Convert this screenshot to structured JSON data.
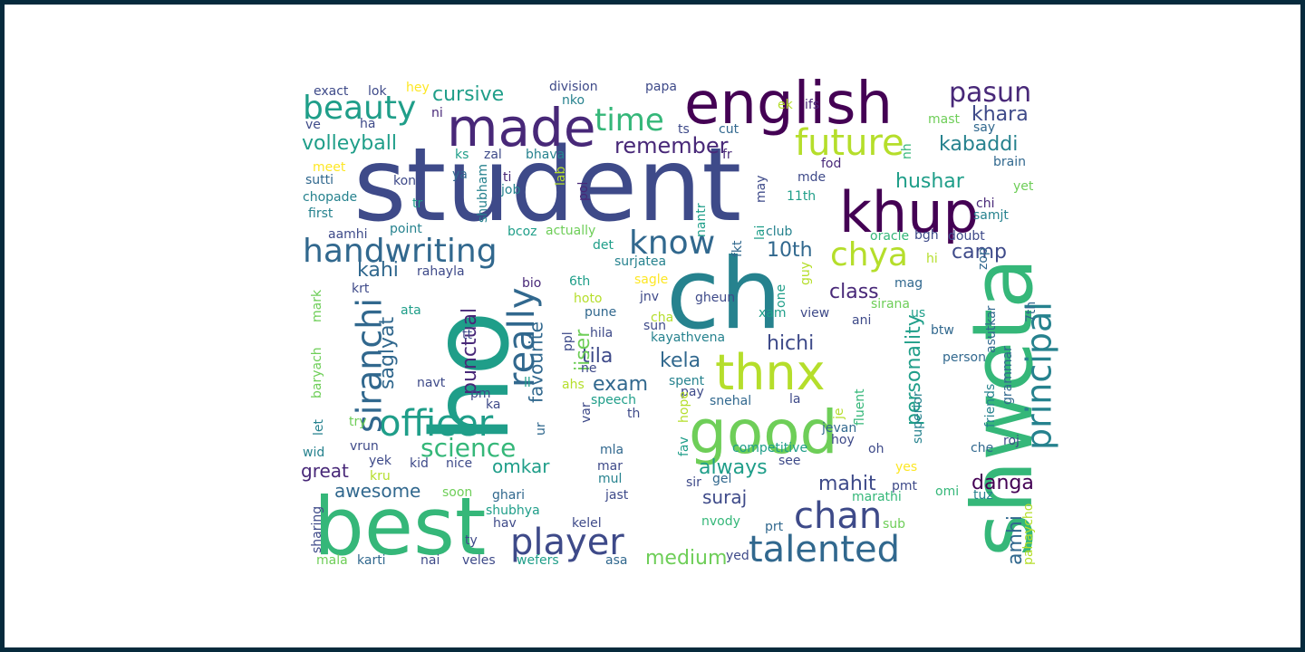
{
  "palette": {
    "background": "#ffffff",
    "border": "#062a3c",
    "colors": [
      "#440154",
      "#482878",
      "#3e4a89",
      "#31688e",
      "#26828e",
      "#1f9e89",
      "#35b779",
      "#6ece58",
      "#b5de2b",
      "#fde725"
    ]
  },
  "words": [
    {
      "text": "student",
      "c": 2
    },
    {
      "text": "ho",
      "c": 5
    },
    {
      "text": "ch",
      "c": 4
    },
    {
      "text": "shweta",
      "c": 6
    },
    {
      "text": "best",
      "c": 6
    },
    {
      "text": "english",
      "c": 0
    },
    {
      "text": "made",
      "c": 1
    },
    {
      "text": "khup",
      "c": 0
    },
    {
      "text": "good",
      "c": 7
    },
    {
      "text": "thnx",
      "c": 8
    },
    {
      "text": "officer",
      "c": 5
    },
    {
      "text": "handwriting",
      "c": 3
    },
    {
      "text": "really",
      "c": 3
    },
    {
      "text": "siranchi",
      "c": 3
    },
    {
      "text": "player",
      "c": 2
    },
    {
      "text": "talented",
      "c": 3
    },
    {
      "text": "chan",
      "c": 2
    },
    {
      "text": "principal",
      "c": 4
    },
    {
      "text": "future",
      "c": 8
    },
    {
      "text": "beauty",
      "c": 5
    },
    {
      "text": "time",
      "c": 6
    },
    {
      "text": "know",
      "c": 3
    },
    {
      "text": "chya",
      "c": 8
    },
    {
      "text": "pasun",
      "c": 1
    },
    {
      "text": "science",
      "c": 6
    },
    {
      "text": "volleyball",
      "c": 5
    },
    {
      "text": "cursive",
      "c": 5
    },
    {
      "text": "remember",
      "c": 1
    },
    {
      "text": "khara",
      "c": 2
    },
    {
      "text": "kabaddi",
      "c": 4
    },
    {
      "text": "hushar",
      "c": 5
    },
    {
      "text": "10th",
      "c": 3
    },
    {
      "text": "camp",
      "c": 2
    },
    {
      "text": "class",
      "c": 1
    },
    {
      "text": "hichi",
      "c": 2
    },
    {
      "text": "tila",
      "c": 2
    },
    {
      "text": "kela",
      "c": 3
    },
    {
      "text": "exam",
      "c": 3
    },
    {
      "text": "kahi",
      "c": 3
    },
    {
      "text": "saglyat",
      "c": 3
    },
    {
      "text": "punctual",
      "c": 1
    },
    {
      "text": "favourite",
      "c": 3
    },
    {
      "text": "iiser",
      "c": 7
    },
    {
      "text": "personality",
      "c": 5
    },
    {
      "text": "amhi",
      "c": 3
    },
    {
      "text": "danga",
      "c": 0
    },
    {
      "text": "mahit",
      "c": 2
    },
    {
      "text": "always",
      "c": 5
    },
    {
      "text": "suraj",
      "c": 2
    },
    {
      "text": "great",
      "c": 1
    },
    {
      "text": "omkar",
      "c": 5
    },
    {
      "text": "awesome",
      "c": 3
    },
    {
      "text": "medium",
      "c": 7
    },
    {
      "text": "exact",
      "c": 2
    },
    {
      "text": "lok",
      "c": 2
    },
    {
      "text": "hey",
      "c": 9
    },
    {
      "text": "division",
      "c": 2
    },
    {
      "text": "nko",
      "c": 4
    },
    {
      "text": "papa",
      "c": 2
    },
    {
      "text": "ve",
      "c": 2
    },
    {
      "text": "ha",
      "c": 2
    },
    {
      "text": "ni",
      "c": 1
    },
    {
      "text": "ts",
      "c": 2
    },
    {
      "text": "cut",
      "c": 3
    },
    {
      "text": "ek",
      "c": 8
    },
    {
      "text": "ifs",
      "c": 1
    },
    {
      "text": "mast",
      "c": 7
    },
    {
      "text": "say",
      "c": 3
    },
    {
      "text": "ks",
      "c": 5
    },
    {
      "text": "zal",
      "c": 2
    },
    {
      "text": "bhava",
      "c": 4
    },
    {
      "text": "fr",
      "c": 1
    },
    {
      "text": "nh",
      "c": 6
    },
    {
      "text": "fod",
      "c": 1
    },
    {
      "text": "brain",
      "c": 3
    },
    {
      "text": "meet",
      "c": 9
    },
    {
      "text": "ya",
      "c": 3
    },
    {
      "text": "ti",
      "c": 1
    },
    {
      "text": "lab",
      "c": 8
    },
    {
      "text": "mde",
      "c": 2
    },
    {
      "text": "sutti",
      "c": 3
    },
    {
      "text": "kone",
      "c": 2
    },
    {
      "text": "shubham",
      "c": 4
    },
    {
      "text": "job",
      "c": 4
    },
    {
      "text": "pol",
      "c": 1
    },
    {
      "text": "nantr",
      "c": 5
    },
    {
      "text": "may",
      "c": 2
    },
    {
      "text": "11th",
      "c": 5
    },
    {
      "text": "chi",
      "c": 1
    },
    {
      "text": "yet",
      "c": 7
    },
    {
      "text": "chopade",
      "c": 4
    },
    {
      "text": "tr",
      "c": 5
    },
    {
      "text": "samjt",
      "c": 4
    },
    {
      "text": "first",
      "c": 4
    },
    {
      "text": "aamhi",
      "c": 2
    },
    {
      "text": "point",
      "c": 4
    },
    {
      "text": "bcoz",
      "c": 5
    },
    {
      "text": "actually",
      "c": 7
    },
    {
      "text": "det",
      "c": 5
    },
    {
      "text": "fkt",
      "c": 3
    },
    {
      "text": "lai",
      "c": 5
    },
    {
      "text": "club",
      "c": 4
    },
    {
      "text": "bgh",
      "c": 2
    },
    {
      "text": "doubt",
      "c": 2
    },
    {
      "text": "oracle",
      "c": 6
    },
    {
      "text": "hi",
      "c": 8
    },
    {
      "text": "zop",
      "c": 3
    },
    {
      "text": "rahayla",
      "c": 2
    },
    {
      "text": "surjatea",
      "c": 4
    },
    {
      "text": "sagle",
      "c": 9
    },
    {
      "text": "guy",
      "c": 8
    },
    {
      "text": "krt",
      "c": 2
    },
    {
      "text": "6th",
      "c": 5
    },
    {
      "text": "bio",
      "c": 1
    },
    {
      "text": "mag",
      "c": 3
    },
    {
      "text": "mark",
      "c": 7
    },
    {
      "text": "jnv",
      "c": 2
    },
    {
      "text": "gheun",
      "c": 2
    },
    {
      "text": "one",
      "c": 5
    },
    {
      "text": "hoto",
      "c": 8
    },
    {
      "text": "ata",
      "c": 5
    },
    {
      "text": "pune",
      "c": 3
    },
    {
      "text": "xam",
      "c": 5
    },
    {
      "text": "view",
      "c": 2
    },
    {
      "text": "sirana",
      "c": 7
    },
    {
      "text": "us",
      "c": 5
    },
    {
      "text": "7th",
      "c": 3
    },
    {
      "text": "cha",
      "c": 8
    },
    {
      "text": "sun",
      "c": 2
    },
    {
      "text": "ani",
      "c": 2
    },
    {
      "text": "asutkar",
      "c": 3
    },
    {
      "text": "ppl",
      "c": 2
    },
    {
      "text": "hila",
      "c": 2
    },
    {
      "text": "tt",
      "c": 2
    },
    {
      "text": "kayathvena",
      "c": 4
    },
    {
      "text": "btw",
      "c": 3
    },
    {
      "text": "baryach",
      "c": 7
    },
    {
      "text": "ne",
      "c": 2
    },
    {
      "text": "person",
      "c": 3
    },
    {
      "text": "navt",
      "c": 2
    },
    {
      "text": "ll",
      "c": 5
    },
    {
      "text": "ahs",
      "c": 8
    },
    {
      "text": "spent",
      "c": 4
    },
    {
      "text": "pay",
      "c": 2
    },
    {
      "text": "hope",
      "c": 8
    },
    {
      "text": "fluent",
      "c": 6
    },
    {
      "text": "friends",
      "c": 4
    },
    {
      "text": "grammar",
      "c": 3
    },
    {
      "text": "pm",
      "c": 2
    },
    {
      "text": "speech",
      "c": 5
    },
    {
      "text": "snehal",
      "c": 3
    },
    {
      "text": "la",
      "c": 2
    },
    {
      "text": "je",
      "c": 8
    },
    {
      "text": "ka",
      "c": 2
    },
    {
      "text": "var",
      "c": 2
    },
    {
      "text": "th",
      "c": 2
    },
    {
      "text": "jevan",
      "c": 3
    },
    {
      "text": "superior",
      "c": 4
    },
    {
      "text": "let",
      "c": 4
    },
    {
      "text": "try",
      "c": 7
    },
    {
      "text": "ur",
      "c": 3
    },
    {
      "text": "fav",
      "c": 5
    },
    {
      "text": "hoy",
      "c": 2
    },
    {
      "text": "roj",
      "c": 2
    },
    {
      "text": "wid",
      "c": 4
    },
    {
      "text": "vrun",
      "c": 2
    },
    {
      "text": "mla",
      "c": 3
    },
    {
      "text": "competitive",
      "c": 5
    },
    {
      "text": "oh",
      "c": 2
    },
    {
      "text": "che",
      "c": 3
    },
    {
      "text": "yek",
      "c": 2
    },
    {
      "text": "kid",
      "c": 2
    },
    {
      "text": "nice",
      "c": 2
    },
    {
      "text": "mar",
      "c": 2
    },
    {
      "text": "see",
      "c": 2
    },
    {
      "text": "yes",
      "c": 9
    },
    {
      "text": "kru",
      "c": 8
    },
    {
      "text": "mul",
      "c": 4
    },
    {
      "text": "sir",
      "c": 2
    },
    {
      "text": "gel",
      "c": 3
    },
    {
      "text": "pmt",
      "c": 2
    },
    {
      "text": "omi",
      "c": 6
    },
    {
      "text": "soon",
      "c": 7
    },
    {
      "text": "ghari",
      "c": 3
    },
    {
      "text": "jast",
      "c": 2
    },
    {
      "text": "marathi",
      "c": 6
    },
    {
      "text": "tuz",
      "c": 4
    },
    {
      "text": "sharing",
      "c": 2
    },
    {
      "text": "shubhya",
      "c": 5
    },
    {
      "text": "pahaycho",
      "c": 8
    },
    {
      "text": "hav",
      "c": 2
    },
    {
      "text": "kelel",
      "c": 2
    },
    {
      "text": "nvody",
      "c": 6
    },
    {
      "text": "ty",
      "c": 2
    },
    {
      "text": "prt",
      "c": 3
    },
    {
      "text": "sub",
      "c": 7
    },
    {
      "text": "yed",
      "c": 2
    },
    {
      "text": "mala",
      "c": 7
    },
    {
      "text": "karti",
      "c": 3
    },
    {
      "text": "nai",
      "c": 2
    },
    {
      "text": "veles",
      "c": 2
    },
    {
      "text": "wefers",
      "c": 5
    },
    {
      "text": "asa",
      "c": 3
    }
  ]
}
